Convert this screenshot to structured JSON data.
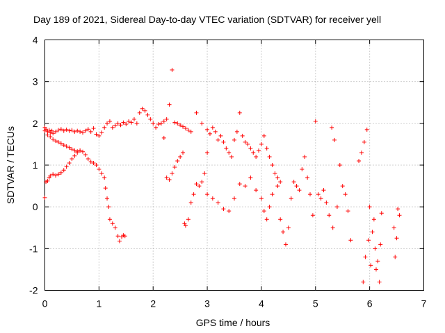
{
  "chart_data": {
    "type": "scatter",
    "title": "Day 189 of 2021, Sidereal Day-to-day VTEC variation (SDTVAR) for receiver yell",
    "xlabel": "GPS time / hours",
    "ylabel": "SDTVAR / TECUs",
    "xlim": [
      0,
      7
    ],
    "ylim": [
      -2,
      4
    ],
    "xticks": [
      0,
      1,
      2,
      3,
      4,
      5,
      6,
      7
    ],
    "yticks": [
      -2,
      -1,
      0,
      1,
      2,
      3,
      4
    ],
    "grid": true,
    "marker": "+",
    "series": [
      {
        "name": "SDTVAR",
        "color": "#ff0000",
        "points": [
          [
            0.0,
            1.82
          ],
          [
            0.02,
            1.86
          ],
          [
            0.05,
            1.8
          ],
          [
            0.08,
            1.84
          ],
          [
            0.1,
            1.78
          ],
          [
            0.13,
            1.82
          ],
          [
            0.15,
            1.76
          ],
          [
            0.2,
            1.8
          ],
          [
            0.25,
            1.84
          ],
          [
            0.3,
            1.86
          ],
          [
            0.35,
            1.82
          ],
          [
            0.4,
            1.85
          ],
          [
            0.45,
            1.82
          ],
          [
            0.5,
            1.84
          ],
          [
            0.55,
            1.8
          ],
          [
            0.6,
            1.82
          ],
          [
            0.65,
            1.8
          ],
          [
            0.7,
            1.78
          ],
          [
            0.75,
            1.82
          ],
          [
            0.8,
            1.86
          ],
          [
            0.85,
            1.8
          ],
          [
            0.9,
            1.88
          ],
          [
            0.95,
            1.74
          ],
          [
            1.0,
            1.7
          ],
          [
            1.05,
            1.78
          ],
          [
            1.1,
            1.9
          ],
          [
            1.15,
            2.0
          ],
          [
            1.2,
            2.05
          ],
          [
            1.25,
            1.9
          ],
          [
            1.3,
            1.95
          ],
          [
            1.35,
            2.0
          ],
          [
            1.4,
            1.96
          ],
          [
            1.45,
            2.02
          ],
          [
            1.5,
            1.98
          ],
          [
            1.55,
            2.05
          ],
          [
            1.6,
            2.02
          ],
          [
            1.65,
            2.1
          ],
          [
            1.7,
            2.0
          ],
          [
            1.75,
            2.25
          ],
          [
            1.8,
            2.35
          ],
          [
            1.85,
            2.3
          ],
          [
            1.9,
            2.2
          ],
          [
            1.95,
            2.1
          ],
          [
            2.0,
            2.0
          ],
          [
            2.05,
            1.9
          ],
          [
            2.1,
            1.98
          ],
          [
            2.15,
            2.0
          ],
          [
            2.2,
            2.05
          ],
          [
            2.25,
            2.1
          ],
          [
            2.3,
            2.45
          ],
          [
            2.35,
            3.28
          ],
          [
            2.4,
            2.02
          ],
          [
            2.45,
            2.0
          ],
          [
            2.5,
            1.96
          ],
          [
            2.55,
            1.92
          ],
          [
            2.6,
            1.88
          ],
          [
            2.65,
            1.84
          ],
          [
            2.7,
            1.8
          ],
          [
            0.0,
            1.9
          ],
          [
            0.05,
            1.72
          ],
          [
            0.1,
            1.68
          ],
          [
            0.15,
            1.62
          ],
          [
            0.2,
            1.58
          ],
          [
            0.25,
            1.55
          ],
          [
            0.3,
            1.52
          ],
          [
            0.35,
            1.48
          ],
          [
            0.4,
            1.45
          ],
          [
            0.45,
            1.42
          ],
          [
            0.5,
            1.38
          ],
          [
            0.55,
            1.35
          ],
          [
            0.6,
            1.33
          ],
          [
            0.65,
            1.35
          ],
          [
            0.7,
            1.32
          ],
          [
            0.75,
            1.25
          ],
          [
            0.8,
            1.15
          ],
          [
            0.85,
            1.08
          ],
          [
            0.9,
            1.05
          ],
          [
            0.95,
            1.0
          ],
          [
            1.0,
            0.9
          ],
          [
            1.05,
            0.8
          ],
          [
            1.1,
            0.7
          ],
          [
            1.12,
            0.45
          ],
          [
            1.15,
            0.2
          ],
          [
            1.18,
            0.0
          ],
          [
            1.2,
            -0.3
          ],
          [
            1.25,
            -0.4
          ],
          [
            1.3,
            -0.5
          ],
          [
            1.35,
            -0.7
          ],
          [
            1.38,
            -0.82
          ],
          [
            1.42,
            -0.72
          ],
          [
            1.45,
            -0.68
          ],
          [
            1.48,
            -0.7
          ],
          [
            0.0,
            0.22
          ],
          [
            0.02,
            0.6
          ],
          [
            0.05,
            0.62
          ],
          [
            0.08,
            0.7
          ],
          [
            0.1,
            0.74
          ],
          [
            0.15,
            0.78
          ],
          [
            0.2,
            0.75
          ],
          [
            0.25,
            0.78
          ],
          [
            0.3,
            0.82
          ],
          [
            0.35,
            0.88
          ],
          [
            0.4,
            0.96
          ],
          [
            0.45,
            1.05
          ],
          [
            0.5,
            1.15
          ],
          [
            0.55,
            1.22
          ],
          [
            0.6,
            1.3
          ],
          [
            0.65,
            1.35
          ],
          [
            2.2,
            1.65
          ],
          [
            2.25,
            0.7
          ],
          [
            2.3,
            0.65
          ],
          [
            2.35,
            0.8
          ],
          [
            2.4,
            0.95
          ],
          [
            2.45,
            1.1
          ],
          [
            2.5,
            1.2
          ],
          [
            2.55,
            1.3
          ],
          [
            2.58,
            -0.4
          ],
          [
            2.6,
            -0.45
          ],
          [
            2.65,
            -0.3
          ],
          [
            2.7,
            0.1
          ],
          [
            2.75,
            0.3
          ],
          [
            2.8,
            0.55
          ],
          [
            2.85,
            0.5
          ],
          [
            2.9,
            0.6
          ],
          [
            2.95,
            0.8
          ],
          [
            3.0,
            1.3
          ],
          [
            2.8,
            2.25
          ],
          [
            2.9,
            2.0
          ],
          [
            3.0,
            1.85
          ],
          [
            3.05,
            1.75
          ],
          [
            3.1,
            1.9
          ],
          [
            3.15,
            1.8
          ],
          [
            3.2,
            1.6
          ],
          [
            3.25,
            1.7
          ],
          [
            3.3,
            1.55
          ],
          [
            3.35,
            1.4
          ],
          [
            3.4,
            1.3
          ],
          [
            3.45,
            1.2
          ],
          [
            3.5,
            1.6
          ],
          [
            3.55,
            1.8
          ],
          [
            3.6,
            2.25
          ],
          [
            3.65,
            1.7
          ],
          [
            3.7,
            1.55
          ],
          [
            3.75,
            1.5
          ],
          [
            3.8,
            1.4
          ],
          [
            3.85,
            1.3
          ],
          [
            3.9,
            1.2
          ],
          [
            3.95,
            1.35
          ],
          [
            4.0,
            1.5
          ],
          [
            4.05,
            1.7
          ],
          [
            4.1,
            1.4
          ],
          [
            4.15,
            1.2
          ],
          [
            4.2,
            1.0
          ],
          [
            4.25,
            0.8
          ],
          [
            4.3,
            0.7
          ],
          [
            4.35,
            0.6
          ],
          [
            3.0,
            0.3
          ],
          [
            3.1,
            0.2
          ],
          [
            3.2,
            0.1
          ],
          [
            3.3,
            -0.05
          ],
          [
            3.4,
            -0.1
          ],
          [
            3.5,
            0.2
          ],
          [
            3.6,
            0.55
          ],
          [
            3.7,
            0.5
          ],
          [
            3.8,
            0.7
          ],
          [
            3.9,
            0.4
          ],
          [
            4.0,
            0.2
          ],
          [
            4.05,
            -0.1
          ],
          [
            4.1,
            -0.3
          ],
          [
            4.15,
            0.0
          ],
          [
            4.2,
            0.3
          ],
          [
            4.3,
            0.5
          ],
          [
            4.35,
            -0.3
          ],
          [
            4.4,
            -0.6
          ],
          [
            4.45,
            -0.9
          ],
          [
            4.5,
            -0.5
          ],
          [
            4.55,
            0.2
          ],
          [
            4.6,
            0.6
          ],
          [
            4.65,
            0.5
          ],
          [
            4.7,
            0.4
          ],
          [
            4.75,
            0.9
          ],
          [
            4.8,
            1.2
          ],
          [
            4.85,
            0.7
          ],
          [
            4.9,
            0.3
          ],
          [
            4.95,
            -0.2
          ],
          [
            5.0,
            2.05
          ],
          [
            5.05,
            0.3
          ],
          [
            5.1,
            0.2
          ],
          [
            5.15,
            0.4
          ],
          [
            5.2,
            0.1
          ],
          [
            5.25,
            -0.2
          ],
          [
            5.3,
            1.9
          ],
          [
            5.32,
            -0.5
          ],
          [
            5.35,
            1.6
          ],
          [
            5.4,
            0.0
          ],
          [
            5.45,
            1.0
          ],
          [
            5.5,
            0.5
          ],
          [
            5.55,
            0.3
          ],
          [
            5.6,
            -0.1
          ],
          [
            5.65,
            -0.8
          ],
          [
            5.8,
            1.1
          ],
          [
            5.85,
            1.3
          ],
          [
            5.88,
            -1.8
          ],
          [
            5.9,
            1.55
          ],
          [
            5.92,
            -1.2
          ],
          [
            5.95,
            1.85
          ],
          [
            5.98,
            -0.8
          ],
          [
            6.0,
            0.0
          ],
          [
            6.02,
            -1.4
          ],
          [
            6.05,
            -0.6
          ],
          [
            6.08,
            -0.3
          ],
          [
            6.1,
            -1.0
          ],
          [
            6.12,
            -1.5
          ],
          [
            6.15,
            -1.3
          ],
          [
            6.18,
            -1.8
          ],
          [
            6.2,
            -0.9
          ],
          [
            6.22,
            -0.15
          ],
          [
            6.45,
            -0.5
          ],
          [
            6.47,
            -1.2
          ],
          [
            6.5,
            -0.75
          ],
          [
            6.52,
            -0.05
          ],
          [
            6.55,
            -0.2
          ]
        ]
      }
    ]
  }
}
